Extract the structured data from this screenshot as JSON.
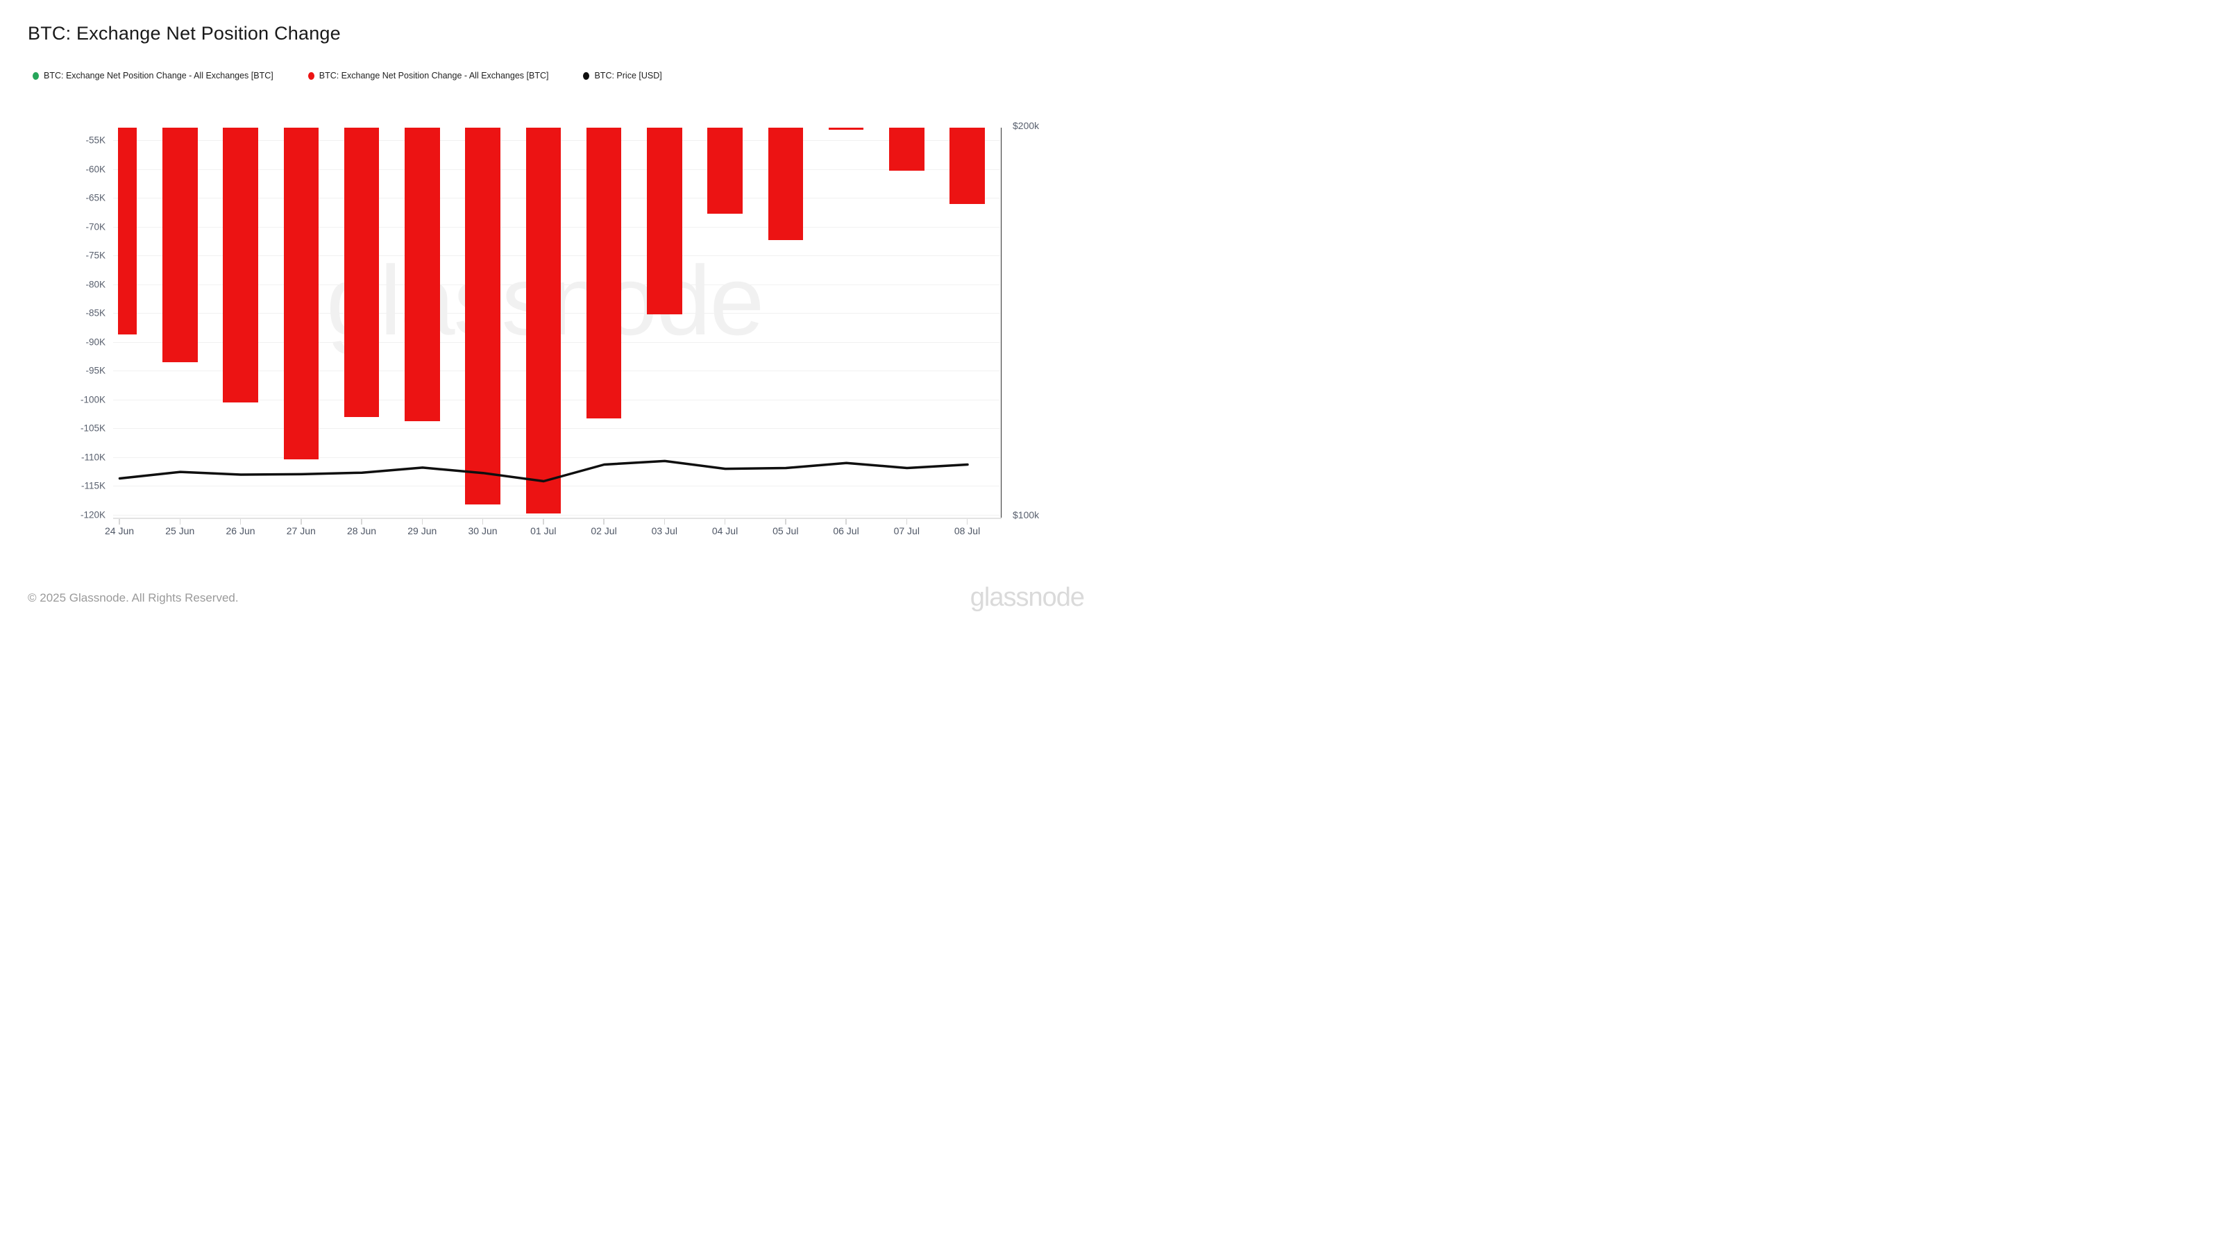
{
  "title": "BTC: Exchange Net Position Change",
  "legend": {
    "items": [
      {
        "label": "BTC: Exchange Net Position Change - All Exchanges [BTC]",
        "color": "#26a65a"
      },
      {
        "label": "BTC: Exchange Net Position Change - All Exchanges [BTC]",
        "color": "#ec1313"
      },
      {
        "label": "BTC: Price [USD]",
        "color": "#0f0f0f"
      }
    ]
  },
  "watermark": "glassnode",
  "footer": {
    "copyright": "© 2025 Glassnode. All Rights Reserved.",
    "brand": "glassnode"
  },
  "colors": {
    "bar_red": "#ec1313",
    "legend_green": "#26a65a",
    "price_black": "#0f0f0f",
    "axis_text": "#59606e"
  },
  "chart_data": {
    "type": "combo",
    "categories": [
      "24 Jun",
      "25 Jun",
      "26 Jun",
      "27 Jun",
      "28 Jun",
      "29 Jun",
      "30 Jun",
      "01 Jul",
      "02 Jul",
      "03 Jul",
      "04 Jul",
      "05 Jul",
      "06 Jul",
      "07 Jul",
      "08 Jul"
    ],
    "series": [
      {
        "name": "BTC: Exchange Net Position Change - All Exchanges [BTC]",
        "type": "bar",
        "color": "#ec1313",
        "unit": "BTC",
        "values": [
          -88700,
          -93600,
          -100500,
          -110400,
          -103100,
          -103800,
          -118300,
          -119800,
          -103300,
          -85300,
          -67800,
          -72400,
          -53200,
          -60300,
          -66100
        ]
      },
      {
        "name": "BTC: Price [USD]",
        "type": "line",
        "color": "#0f0f0f",
        "unit": "USD",
        "values": [
          109400,
          111100,
          110400,
          110500,
          110900,
          112200,
          110800,
          108700,
          113000,
          113900,
          111900,
          112100,
          113400,
          112100,
          113000
        ]
      }
    ],
    "left_axis": {
      "tick_labels": [
        "-55K",
        "-60K",
        "-65K",
        "-70K",
        "-75K",
        "-80K",
        "-85K",
        "-90K",
        "-95K",
        "-100K",
        "-105K",
        "-110K",
        "-115K",
        "-120K"
      ],
      "tick_values": [
        -55000,
        -60000,
        -65000,
        -70000,
        -75000,
        -80000,
        -85000,
        -90000,
        -95000,
        -100000,
        -105000,
        -110000,
        -115000,
        -120000
      ],
      "range_top": -52770,
      "range_bottom": -120550
    },
    "right_axis": {
      "labels": [
        "$200k",
        "$100k"
      ],
      "values": [
        200000,
        100000
      ]
    },
    "grid": "horizontal",
    "legend_position": "top-left"
  }
}
